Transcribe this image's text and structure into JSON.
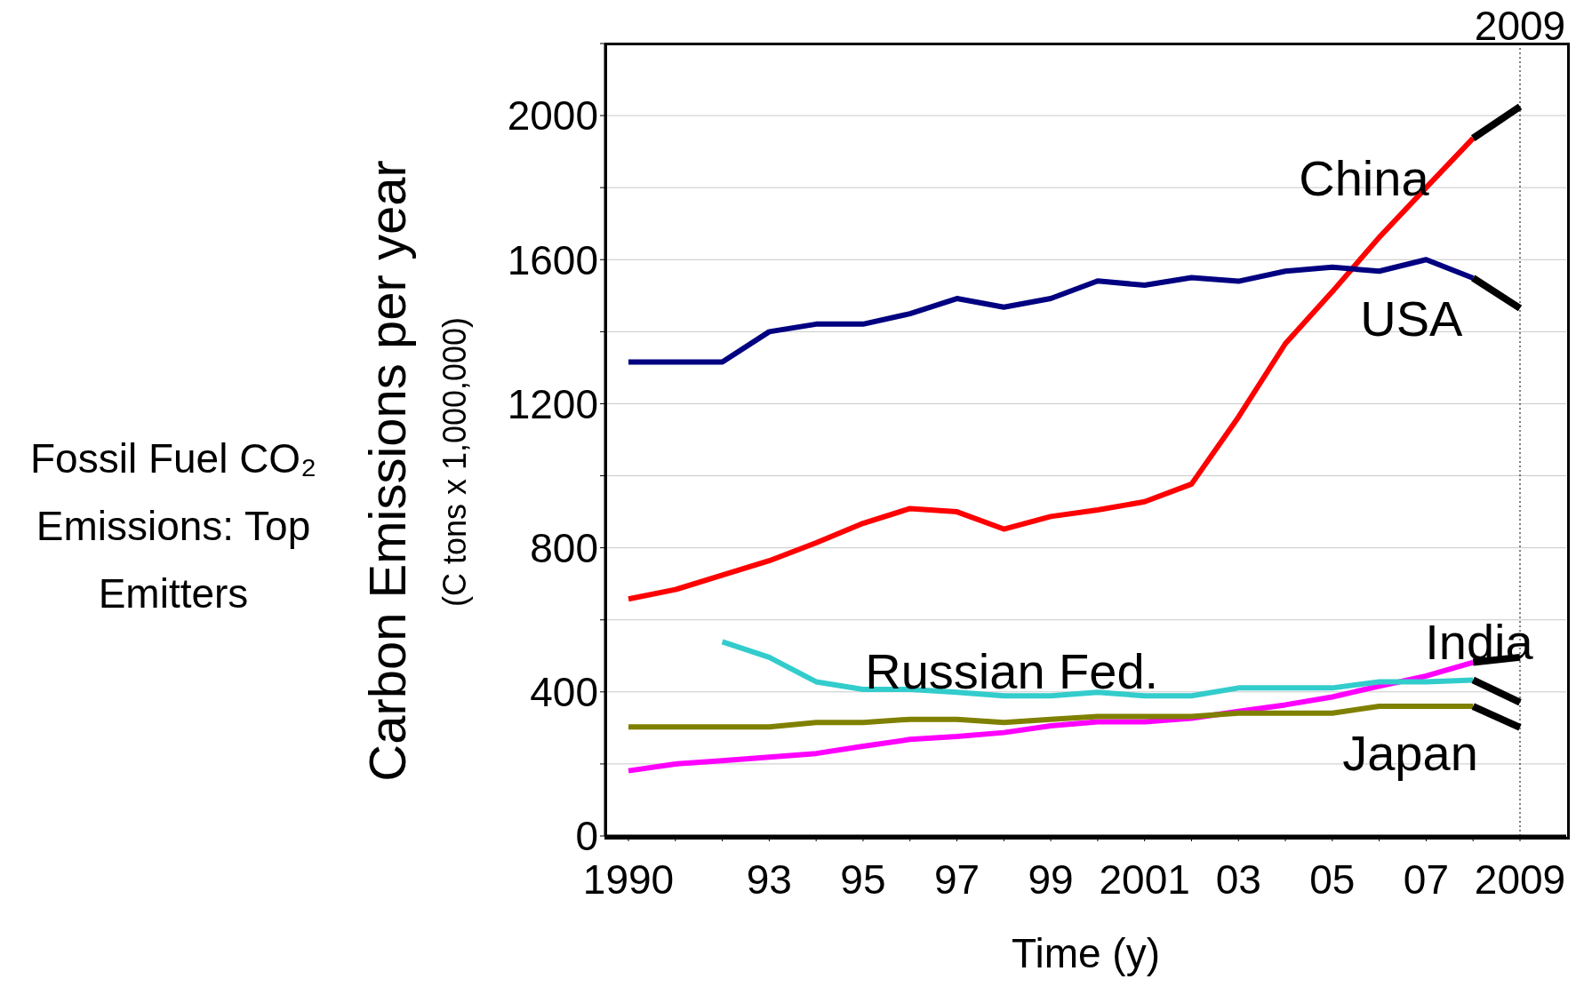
{
  "chart_data": {
    "type": "line",
    "title": "Fossil Fuel CO₂ Emissions: Top Emitters",
    "xlabel": "Time (y)",
    "ylabel": "Carbon Emissions per year (C tons x 1,000,000)",
    "categories": [
      "1990",
      null,
      null,
      "93",
      null,
      "95",
      null,
      "97",
      null,
      "99",
      null,
      "2001",
      null,
      "03",
      null,
      "05",
      null,
      "07",
      null,
      "2009"
    ],
    "ylim": [
      0,
      2200
    ],
    "yticks": [
      0,
      {
        "value": 200,
        "label": null
      },
      400,
      {
        "value": 600,
        "label": null
      },
      800,
      {
        "value": 1000,
        "label": null
      },
      1200,
      {
        "value": 1400,
        "label": null
      },
      1600,
      {
        "value": 1800,
        "label": null
      },
      2000,
      {
        "value": 2200,
        "label": null
      }
    ],
    "grid": "y",
    "legend": false,
    "marker": "none",
    "line_style": "solid",
    "ref_lines": [
      {
        "axis": "x",
        "value": "2009",
        "label": "2009",
        "color": "#000000",
        "line_style": "dotted"
      }
    ],
    "series": [
      {
        "name": "China",
        "color": "#ff0000",
        "values": [
          658,
          684,
          724,
          764,
          814,
          868,
          909,
          900,
          852,
          887,
          905,
          928,
          977,
          1163,
          1367,
          1511,
          1662,
          1800,
          1937,
          null
        ]
      },
      {
        "name": "USA",
        "color": "#000080",
        "values": [
          1316,
          1316,
          1316,
          1400,
          1421,
          1421,
          1450,
          1492,
          1468,
          1492,
          1541,
          1529,
          1550,
          1540,
          1568,
          1579,
          1568,
          1600,
          1549,
          null
        ]
      },
      {
        "name": "India",
        "color": "#ff00ff",
        "values": [
          181,
          200,
          209,
          219,
          229,
          249,
          268,
          276,
          287,
          306,
          317,
          317,
          327,
          346,
          364,
          386,
          416,
          444,
          482,
          null
        ]
      },
      {
        "name": "Russian Fed.",
        "color": "#33cccc",
        "values": [
          null,
          null,
          539,
          496,
          428,
          407,
          407,
          399,
          389,
          389,
          399,
          389,
          389,
          411,
          411,
          411,
          428,
          428,
          433,
          null
        ]
      },
      {
        "name": "Japan",
        "color": "#808000",
        "values": [
          303,
          303,
          303,
          303,
          315,
          315,
          324,
          324,
          315,
          324,
          332,
          332,
          332,
          341,
          341,
          341,
          360,
          360,
          360,
          null
        ]
      },
      {
        "color": "#000000",
        "values": [
          null,
          null,
          null,
          null,
          null,
          null,
          null,
          null,
          null,
          null,
          null,
          null,
          null,
          null,
          null,
          null,
          null,
          null,
          1937,
          2025
        ]
      },
      {
        "color": "#000000",
        "values": [
          null,
          null,
          null,
          null,
          null,
          null,
          null,
          null,
          null,
          null,
          null,
          null,
          null,
          null,
          null,
          null,
          null,
          null,
          1549,
          1465
        ]
      },
      {
        "color": "#000000",
        "values": [
          null,
          null,
          null,
          null,
          null,
          null,
          null,
          null,
          null,
          null,
          null,
          null,
          null,
          null,
          null,
          null,
          null,
          null,
          482,
          496
        ]
      },
      {
        "color": "#000000",
        "values": [
          null,
          null,
          null,
          null,
          null,
          null,
          null,
          null,
          null,
          null,
          null,
          null,
          null,
          null,
          null,
          null,
          null,
          null,
          433,
          371
        ]
      },
      {
        "color": "#000000",
        "values": [
          null,
          null,
          null,
          null,
          null,
          null,
          null,
          null,
          null,
          null,
          null,
          null,
          null,
          null,
          null,
          null,
          null,
          null,
          360,
          301
        ]
      }
    ]
  }
}
